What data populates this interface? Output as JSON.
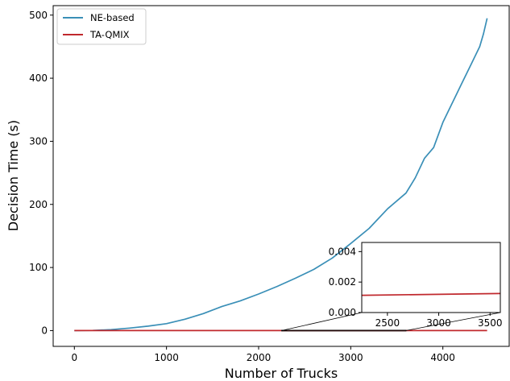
{
  "chart_data": {
    "type": "line",
    "xlabel": "Number of Trucks",
    "ylabel": "Decision Time (s)",
    "xlim": [
      -230,
      4720
    ],
    "ylim": [
      -25,
      515
    ],
    "xticks": [
      0,
      1000,
      2000,
      3000,
      4000
    ],
    "yticks": [
      0,
      100,
      200,
      300,
      400,
      500
    ],
    "grid": false,
    "legend_position": "top-left",
    "series": [
      {
        "name": "NE-based",
        "color": "#3a8fb7",
        "x": [
          0,
          200,
          400,
          600,
          800,
          1000,
          1200,
          1400,
          1600,
          1800,
          2000,
          2200,
          2400,
          2600,
          2800,
          3000,
          3200,
          3400,
          3600,
          3700,
          3800,
          3900,
          4000,
          4100,
          4200,
          4300,
          4400,
          4440,
          4480
        ],
        "y": [
          0,
          0.3,
          1.5,
          4,
          7,
          11,
          18,
          27,
          38,
          47,
          58,
          70,
          83,
          97,
          115,
          138,
          162,
          193,
          218,
          242,
          273,
          290,
          330,
          360,
          390,
          420,
          450,
          470,
          495
        ]
      },
      {
        "name": "TA-QMIX",
        "color": "#c0282d",
        "x": [
          0,
          4480
        ],
        "y": [
          0.0011,
          0.0013
        ]
      }
    ],
    "inset": {
      "xlim": [
        2250,
        3600
      ],
      "ylim": [
        0,
        0.0046
      ],
      "xticks": [
        2500,
        3000,
        3500
      ],
      "yticks": [
        0.0,
        0.002,
        0.004
      ],
      "ytick_labels": [
        "0.000",
        "0.002",
        "0.004"
      ],
      "series_name": "TA-QMIX",
      "x": [
        2250,
        3600
      ],
      "y": [
        0.00113,
        0.00125
      ]
    }
  }
}
